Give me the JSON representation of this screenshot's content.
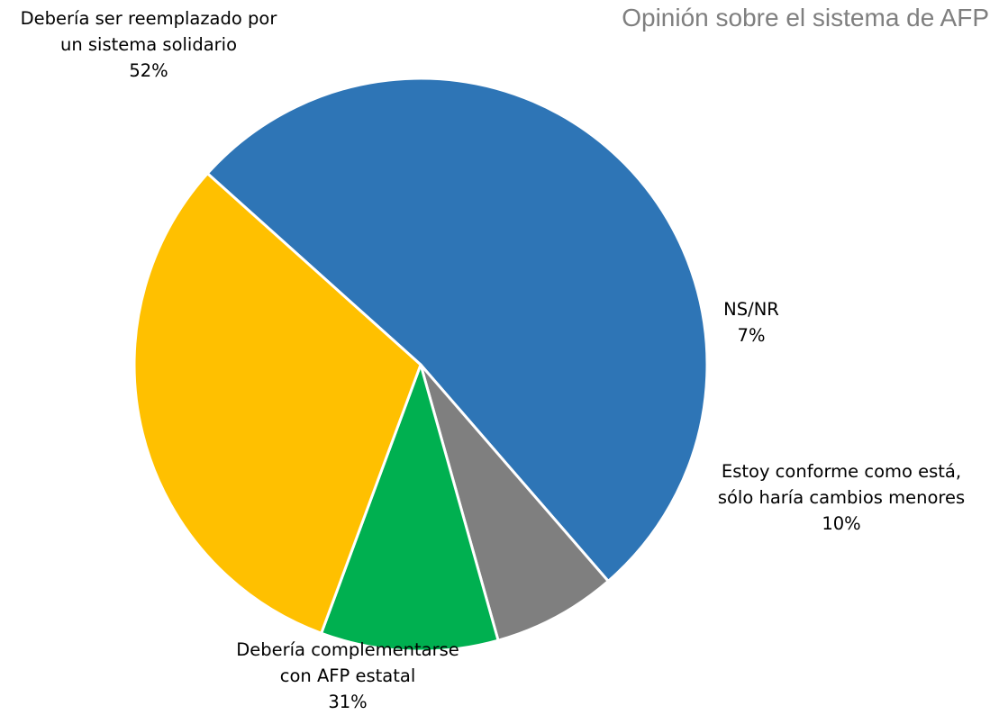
{
  "chart_data": {
    "type": "pie",
    "title": "Opinión sobre el sistema de AFP",
    "slices": [
      {
        "lines": [
          "Debería ser reemplazado por",
          "un sistema solidario"
        ],
        "pct_label": "52%",
        "value": 52,
        "color": "#2e75b6"
      },
      {
        "lines": [
          "NS/NR"
        ],
        "pct_label": "7%",
        "value": 7,
        "color": "#7f7f7f"
      },
      {
        "lines": [
          "Estoy conforme como está,",
          "sólo haría cambios menores"
        ],
        "pct_label": "10%",
        "value": 10,
        "color": "#00b050"
      },
      {
        "lines": [
          "Debería complementarse",
          "con AFP estatal"
        ],
        "pct_label": "31%",
        "value": 31,
        "color": "#ffc000"
      }
    ]
  }
}
